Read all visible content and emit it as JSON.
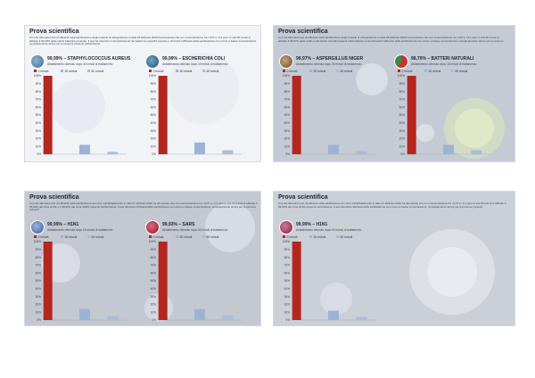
{
  "panels": [
    {
      "id": "top-left",
      "title": "Prova scientifica",
      "description": "Uno dei laboratori test di efficacia nella sanificazione degli impianti di refrigerazione in data 26 febbraio 2020 ha dimostrato che con concentrazione tra i 0,07 e i 0,1 ppm in soli 30 minuti si abbatte il 99,99% della carica batterica presente. Il test ha misurato il comportamento dei batteri su superfici esposte e dimostra l'efficacia della sanificazione con ozono a basse concentrazioni, completamente sicure per le persone presenti nell'ambiente.",
      "background": "#f1f3f7",
      "blocks": [
        {
          "percent_label": "99,99% – STAPHYLOCOCCUS AUREUS",
          "subtitle": "Abbattimento ottenuto dopo 30 minuti di trattamento",
          "badge_color": "#3f6e8f",
          "badge_style": "bacteria-icon"
        },
        {
          "percent_label": "99,99% – ESCHERICHIA COLI",
          "subtitle": "Abbattimento ottenuto dopo 30 minuti di trattamento",
          "badge_color": "#2b5d79",
          "badge_style": "bacteria-icon"
        }
      ]
    },
    {
      "id": "top-right",
      "title": "Prova scientifica",
      "description": "Uno dei laboratori test di efficacia nella sanificazione degli impianti di refrigerazione in data 26 febbraio 2020 ha dimostrato che con concentrazione tra i 0,07 e i 0,1 ppm in soli 30 minuti si abbatte il 99,97% delle muffe e dei batteri naturali presenti nell'ambiente. Il test dimostra l'efficacia della sanificazione con ozono a basse concentrazioni, completamente sicure per le persone.",
      "background": "#c9ced6",
      "blocks": [
        {
          "percent_label": "99,97% – ASPERGILLUS NIGER",
          "subtitle": "Abbattimento ottenuto dopo 30 minuti di trattamento",
          "badge_color": "#7a5a36",
          "badge_style": "mold-icon"
        },
        {
          "percent_label": "98,70% – BATTERI NATURALI",
          "subtitle": "Abbattimento ottenuto dopo 30 minuti di trattamento",
          "badge_color": "#c0392b",
          "badge_style": "pie-icon"
        }
      ]
    },
    {
      "id": "bottom-left",
      "title": "Prova scientifica",
      "description": "Uno dei laboratori test di efficacia nella sanificazione dei virus sull'abbattimento in data 27 febbraio 2020 ha dimostrato che con concentrazione tra i 0,07 e i 0,1 ppm in soli 60 minuti si abbatte il 99,99% dei virus H1N1 e il 99,93% dei virus SARS presenti nell'ambiente. Il test dimostra l'efficacia della sanificazione con ozono a basse concentrazioni, completamente sicure per le persone presenti.",
      "background": "#c7ccd4",
      "blocks": [
        {
          "percent_label": "99,99% – H1N1",
          "subtitle": "Abbattimento ottenuto dopo 60 minuti di trattamento",
          "badge_color": "#4f6fa8",
          "badge_style": "virus-icon"
        },
        {
          "percent_label": "99,93% – SARS",
          "subtitle": "Abbattimento ottenuto dopo 60 minuti di trattamento",
          "badge_color": "#b8233a",
          "badge_style": "virus-icon"
        }
      ]
    },
    {
      "id": "bottom-right",
      "title": "Prova scientifica",
      "description": "Uno dei laboratori test di efficacia nella sanificazione dei virus sull'abbattimento in data 27 febbraio 2020 ha dimostrato che con concentrazione tra i 0,07 e i 0,1 ppm in soli 60 minuti si abbatte il 99,99% dei virus H1N1 presenti nell'ambiente. Il test dimostra l'efficacia della sanificazione con ozono a basse concentrazioni, completamente sicure per le persone presenti.",
      "background": "#cfd3da",
      "blocks": [
        {
          "percent_label": "99,99% – H1N1",
          "subtitle": "Abbattimento ottenuto dopo 60 minuti di trattamento",
          "badge_color": "#a02f4e",
          "badge_style": "virus-icon"
        }
      ]
    }
  ],
  "colors": {
    "bar_primary": "#b3271e",
    "bar_secondary": "#9db3d6",
    "bar_tertiary": "#a9bcdc",
    "axis": "#9aa3b2",
    "legend_text": "#2c3442"
  },
  "chart_data": [
    {
      "type": "bar",
      "panel": "top-left",
      "title": "99,99% – STAPHYLOCOCCUS AUREUS",
      "categories": [
        "0 minuti",
        "30 minuti",
        "60 minuti"
      ],
      "values": [
        100,
        12,
        3
      ],
      "ylim": [
        0,
        100
      ],
      "yticks": [
        "0%",
        "10%",
        "20%",
        "30%",
        "40%",
        "50%",
        "60%",
        "70%",
        "80%",
        "90%",
        "100%"
      ],
      "xlabel": "",
      "ylabel": "",
      "grid": false
    },
    {
      "type": "bar",
      "panel": "top-left",
      "title": "99,99% – ESCHERICHIA COLI",
      "categories": [
        "0 minuti",
        "30 minuti",
        "60 minuti"
      ],
      "values": [
        100,
        15,
        5
      ],
      "ylim": [
        0,
        100
      ],
      "yticks": [
        "0%",
        "10%",
        "20%",
        "30%",
        "40%",
        "50%",
        "60%",
        "70%",
        "80%",
        "90%",
        "100%"
      ],
      "xlabel": "",
      "ylabel": "",
      "grid": false
    },
    {
      "type": "bar",
      "panel": "top-right",
      "title": "99,97% – ASPERGILLUS NIGER",
      "categories": [
        "0 minuti",
        "30 minuti",
        "60 minuti"
      ],
      "values": [
        100,
        12,
        4
      ],
      "ylim": [
        0,
        100
      ],
      "yticks": [
        "0%",
        "10%",
        "20%",
        "30%",
        "40%",
        "50%",
        "60%",
        "70%",
        "80%",
        "90%",
        "100%"
      ],
      "xlabel": "",
      "ylabel": "",
      "grid": false
    },
    {
      "type": "bar",
      "panel": "top-right",
      "title": "98,70% – BATTERI NATURALI",
      "categories": [
        "0 minuti",
        "30 minuti",
        "60 minuti"
      ],
      "values": [
        100,
        12,
        5
      ],
      "ylim": [
        0,
        100
      ],
      "yticks": [
        "0%",
        "10%",
        "20%",
        "30%",
        "40%",
        "50%",
        "60%",
        "70%",
        "80%",
        "90%",
        "100%"
      ],
      "xlabel": "",
      "ylabel": "",
      "grid": false
    },
    {
      "type": "bar",
      "panel": "bottom-left",
      "title": "99,99% – H1N1",
      "categories": [
        "0 minuti",
        "30 minuti",
        "60 minuti"
      ],
      "values": [
        100,
        14,
        5
      ],
      "ylim": [
        0,
        100
      ],
      "yticks": [
        "0%",
        "10%",
        "20%",
        "30%",
        "40%",
        "50%",
        "60%",
        "70%",
        "80%",
        "90%",
        "100%"
      ],
      "xlabel": "",
      "ylabel": "",
      "grid": false
    },
    {
      "type": "bar",
      "panel": "bottom-left",
      "title": "99,93% – SARS",
      "categories": [
        "0 minuti",
        "30 minuti",
        "60 minuti"
      ],
      "values": [
        100,
        14,
        6
      ],
      "ylim": [
        0,
        100
      ],
      "yticks": [
        "0%",
        "10%",
        "20%",
        "30%",
        "40%",
        "50%",
        "60%",
        "70%",
        "80%",
        "90%",
        "100%"
      ],
      "xlabel": "",
      "ylabel": "",
      "grid": false
    },
    {
      "type": "bar",
      "panel": "bottom-right",
      "title": "99,99% – H1N1",
      "categories": [
        "0 minuti",
        "30 minuti",
        "60 minuti"
      ],
      "values": [
        100,
        12,
        4
      ],
      "ylim": [
        0,
        100
      ],
      "yticks": [
        "0%",
        "10%",
        "20%",
        "30%",
        "40%",
        "50%",
        "60%",
        "70%",
        "80%",
        "90%",
        "100%"
      ],
      "xlabel": "",
      "ylabel": "",
      "grid": false
    }
  ]
}
